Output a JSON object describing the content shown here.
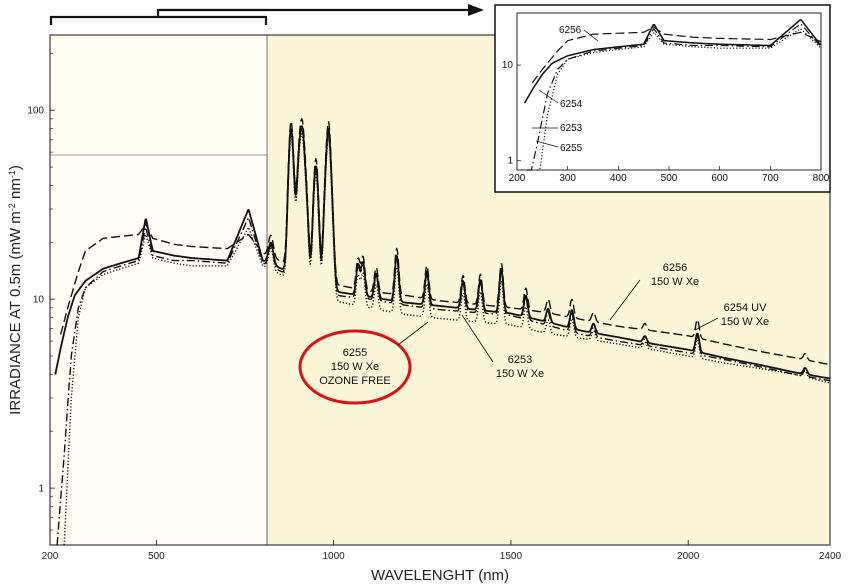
{
  "chart_data": {
    "type": "line",
    "title": "",
    "xlabel": "WAVELENGHT (nm)",
    "ylabel": "IRRADIANCE AT 0.5m (mW m-2 nm-1)",
    "xlim": [
      200,
      2400
    ],
    "ylim": [
      0.5,
      250
    ],
    "yscale": "log",
    "x_ticks": [
      "200",
      "500",
      "1000",
      "1500",
      "2000",
      "2400"
    ],
    "x_tick_values": [
      200,
      500,
      1000,
      1500,
      2000,
      2400
    ],
    "y_ticks": [
      "1",
      "10",
      "100"
    ],
    "y_tick_values": [
      1,
      10,
      100
    ],
    "grid": false,
    "colors": {
      "background": "#fcf6d8",
      "panel": "#fffdf0",
      "line": "#111111",
      "highlight": "#e01010"
    },
    "series": [
      {
        "name": "6256 150 W Xe",
        "style": "dashed",
        "x": [
          230,
          250,
          280,
          300,
          350,
          400,
          450,
          470,
          490,
          550,
          600,
          700,
          760,
          800,
          1000,
          1100,
          1200,
          1300,
          1400,
          1500,
          1600,
          1700,
          1800,
          1900,
          2000,
          2100,
          2200,
          2300,
          2400
        ],
        "y": [
          6.5,
          9,
          14,
          18,
          21,
          21.5,
          22,
          25,
          21,
          19.5,
          19,
          18.5,
          22,
          17.5,
          12,
          11,
          10.5,
          9.8,
          9.4,
          9,
          8.5,
          7.8,
          7.2,
          6.8,
          6.4,
          5.8,
          5.3,
          4.9,
          4.5
        ]
      },
      {
        "name": "6254 UV 150 W Xe",
        "style": "solid",
        "x": [
          215,
          230,
          250,
          270,
          300,
          350,
          400,
          450,
          470,
          490,
          550,
          600,
          700,
          760,
          800,
          1000,
          1100,
          1200,
          1300,
          1400,
          1500,
          1600,
          1700,
          1800,
          1900,
          2000,
          2100,
          2200,
          2300,
          2400
        ],
        "y": [
          4,
          5.5,
          8,
          10.5,
          12.5,
          14.5,
          15.5,
          16.5,
          27,
          18,
          17,
          16.5,
          16,
          30,
          16,
          11,
          10.3,
          9.6,
          9.2,
          8.8,
          8.4,
          7.6,
          6.8,
          6.3,
          5.8,
          5.4,
          4.9,
          4.5,
          4.1,
          3.8
        ]
      },
      {
        "name": "6253 150 W Xe",
        "style": "dash-dot",
        "x": [
          220,
          240,
          260,
          280,
          300,
          350,
          400,
          450,
          470,
          490,
          550,
          600,
          700,
          760,
          800,
          1000,
          1100,
          1200,
          1300,
          1400,
          1500,
          1600,
          1700,
          1800,
          1900,
          2000,
          2100,
          2200,
          2300,
          2400
        ],
        "y": [
          0.5,
          1.5,
          5,
          9,
          11.5,
          14,
          15,
          16,
          24,
          17,
          16,
          16,
          15.5,
          27,
          15.5,
          10.5,
          10,
          9.3,
          8.8,
          8.5,
          8.2,
          7.3,
          6.5,
          6,
          5.6,
          5.2,
          4.8,
          4.4,
          4,
          3.7
        ]
      },
      {
        "name": "6255 150 W Xe OZONE FREE",
        "style": "dotted",
        "x": [
          240,
          260,
          280,
          300,
          350,
          400,
          450,
          470,
          490,
          550,
          600,
          700,
          760,
          800,
          1000,
          1100,
          1200,
          1300,
          1400,
          1500,
          1600,
          1700,
          1800,
          1900,
          2000,
          2100,
          2200,
          2300,
          2400
        ],
        "y": [
          0.5,
          3,
          8,
          11.5,
          13.5,
          14.5,
          15.5,
          22,
          16.5,
          15.5,
          15,
          15,
          24,
          15,
          9.8,
          9,
          8.3,
          7.9,
          7.6,
          7.3,
          6.6,
          6.2,
          5.8,
          5.4,
          5,
          4.6,
          4.3,
          4,
          3.6
        ]
      }
    ],
    "peaks": {
      "x": [
        823,
        880,
        905,
        920,
        950,
        980,
        992,
        1069,
        1083,
        1120,
        1178,
        1263,
        1365,
        1414,
        1473,
        1542,
        1605,
        1672,
        1733,
        1878,
        2026,
        2330
      ],
      "h": [
        1.3,
        5.8,
        4.9,
        3.2,
        4.2,
        4.0,
        3.2,
        1.45,
        1.5,
        1.35,
        1.75,
        1.5,
        1.4,
        1.45,
        1.7,
        1.3,
        1.18,
        1.25,
        1.12,
        1.08,
        1.25,
        1.08
      ]
    },
    "annotations": [
      {
        "lines": [
          "6256",
          "150 W Xe"
        ]
      },
      {
        "lines": [
          "6254 UV",
          "150 W Xe"
        ]
      },
      {
        "lines": [
          "6253",
          "150 W Xe"
        ]
      },
      {
        "lines": [
          "6255",
          "150 W Xe",
          "OZONE FREE"
        ],
        "highlighted": true
      }
    ],
    "inset": {
      "xlim": [
        200,
        800
      ],
      "ylim": [
        0.8,
        35
      ],
      "yscale": "log",
      "x_ticks": [
        "200",
        "300",
        "400",
        "500",
        "600",
        "700",
        "800"
      ],
      "x_tick_values": [
        200,
        300,
        400,
        500,
        600,
        700,
        800
      ],
      "y_ticks": [
        "1",
        "10"
      ],
      "y_tick_values": [
        1,
        10
      ],
      "labels": [
        "6256",
        "6254",
        "6253",
        "6255"
      ]
    }
  }
}
